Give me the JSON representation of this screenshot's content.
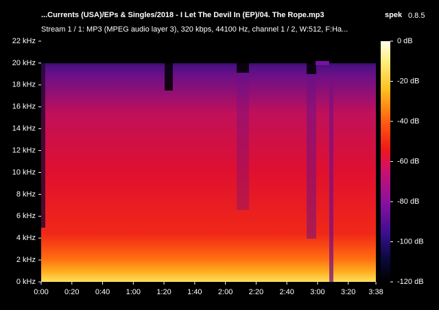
{
  "chart_data": {
    "type": "spectrogram",
    "title": "...Currents (USA)/EPs & Singles/2018 - I Let The Devil In (EP)/04. The Rope.mp3",
    "app": "spek",
    "version": "0.8.5",
    "subtitle": "Stream 1 / 1: MP3 (MPEG audio layer 3), 320 kbps, 44100 Hz, channel 1 / 2, W:512, F:Ha...",
    "xlim": [
      0,
      218
    ],
    "xticks": [
      {
        "value": 0,
        "label": "0:00"
      },
      {
        "value": 20,
        "label": "0:20"
      },
      {
        "value": 40,
        "label": "0:40"
      },
      {
        "value": 60,
        "label": "1:00"
      },
      {
        "value": 80,
        "label": "1:20"
      },
      {
        "value": 100,
        "label": "1:40"
      },
      {
        "value": 120,
        "label": "2:00"
      },
      {
        "value": 140,
        "label": "2:20"
      },
      {
        "value": 160,
        "label": "2:40"
      },
      {
        "value": 180,
        "label": "3:00"
      },
      {
        "value": 200,
        "label": "3:20"
      },
      {
        "value": 218,
        "label": "3:38"
      }
    ],
    "ylim": [
      0,
      22
    ],
    "yticks": [
      {
        "value": 0,
        "label": "0 kHz"
      },
      {
        "value": 2,
        "label": "2 kHz"
      },
      {
        "value": 4,
        "label": "4 kHz"
      },
      {
        "value": 6,
        "label": "6 kHz"
      },
      {
        "value": 8,
        "label": "8 kHz"
      },
      {
        "value": 10,
        "label": "10 kHz"
      },
      {
        "value": 12,
        "label": "12 kHz"
      },
      {
        "value": 14,
        "label": "14 kHz"
      },
      {
        "value": 16,
        "label": "16 kHz"
      },
      {
        "value": 18,
        "label": "18 kHz"
      },
      {
        "value": 20,
        "label": "20 kHz"
      },
      {
        "value": 22,
        "label": "22 kHz"
      }
    ],
    "zlim": [
      -120,
      0
    ],
    "zticks": [
      {
        "value": 0,
        "label": "0 dB"
      },
      {
        "value": -20,
        "label": "-20 dB"
      },
      {
        "value": -40,
        "label": "-40 dB"
      },
      {
        "value": -60,
        "label": "-60 dB"
      },
      {
        "value": -80,
        "label": "-80 dB"
      },
      {
        "value": -100,
        "label": "-100 dB"
      },
      {
        "value": -120,
        "label": "-120 dB"
      }
    ]
  }
}
